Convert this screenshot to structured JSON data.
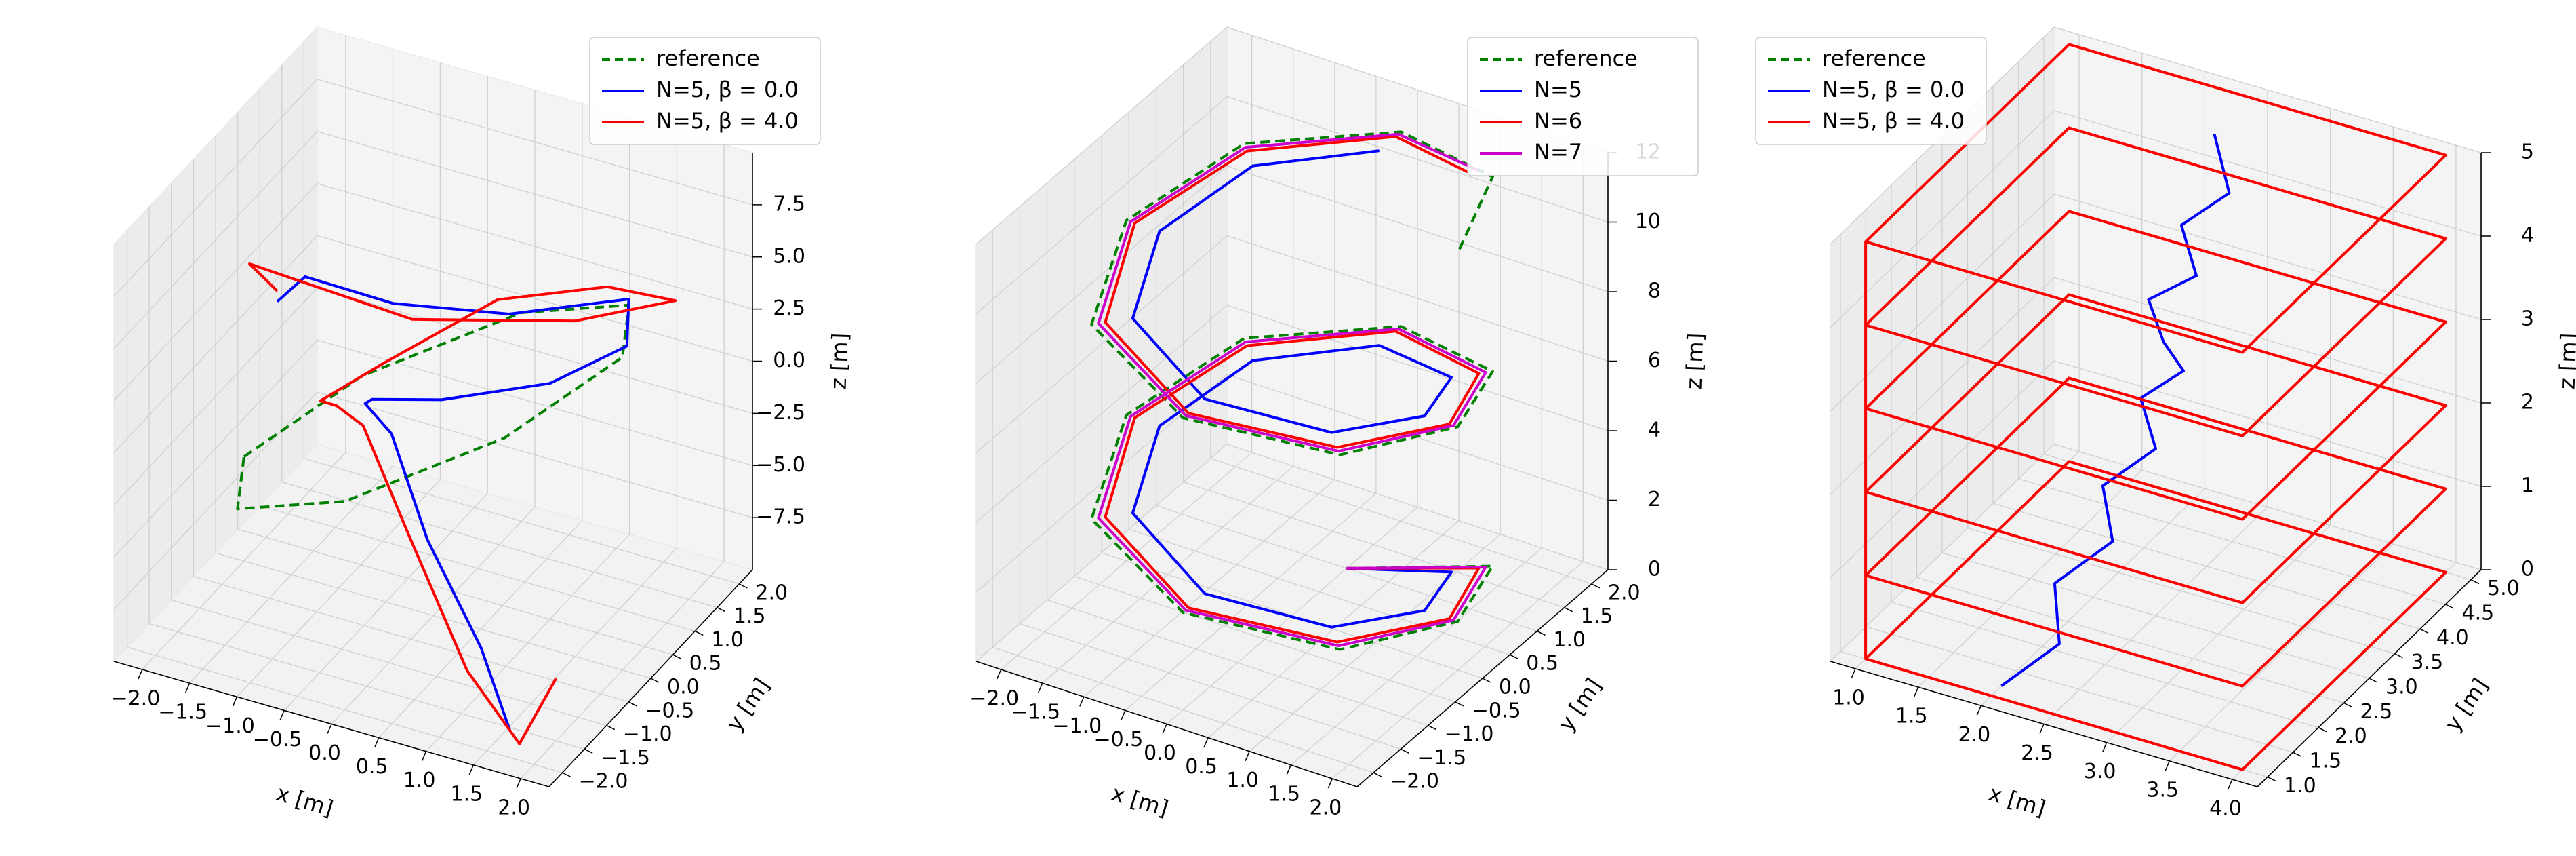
{
  "chart_data": [
    {
      "type": "line",
      "subtype": "3d",
      "xlabel": "x [m]",
      "ylabel": "y [m]",
      "zlabel": "z [m]",
      "xlim": [
        -2.3,
        2.3
      ],
      "ylim": [
        -2.3,
        2.3
      ],
      "zlim": [
        -10,
        10
      ],
      "xticks": [
        "−2.0",
        "−1.5",
        "−1.0",
        "−0.5",
        "0.0",
        "0.5",
        "1.0",
        "1.5",
        "2.0"
      ],
      "yticks": [
        "−2.0",
        "−1.5",
        "−1.0",
        "−0.5",
        "0.0",
        "0.5",
        "1.0",
        "1.5",
        "2.0"
      ],
      "zticks": [
        "−7.5",
        "−5.0",
        "−2.5",
        "0.0",
        "2.5",
        "5.0",
        "7.5"
      ],
      "legend_position": "upper-right",
      "grid": true,
      "series": [
        {
          "name": "reference",
          "color": "#008000",
          "style": "dashed",
          "x": [
            -2.0,
            -1.41,
            0.0,
            1.41,
            2.0,
            1.41,
            0.0,
            -1.41,
            -2.0
          ],
          "y": [
            0.0,
            1.41,
            2.0,
            1.41,
            0.0,
            -1.41,
            -2.0,
            -1.41,
            0.0
          ],
          "z": [
            -5.0,
            -3.54,
            0.0,
            3.54,
            5.0,
            3.54,
            0.0,
            -3.54,
            -5.0
          ]
        },
        {
          "name": "N=5, β = 0.0",
          "color": "#0000ff",
          "style": "solid",
          "x": [
            1.7,
            1.3,
            0.5,
            -0.3,
            -1.0,
            -1.3,
            -0.8,
            0.3,
            1.3,
            1.6,
            0.8,
            0.0,
            -0.7,
            -0.9
          ],
          "y": [
            -1.9,
            -1.7,
            -1.2,
            -0.3,
            0.6,
            1.4,
            1.9,
            2.0,
            1.6,
            1.0,
            0.0,
            -0.9,
            -1.4,
            -1.6
          ],
          "z": [
            -9.0,
            -6.0,
            -3.0,
            -1.0,
            -2.5,
            -4.5,
            -5.0,
            -3.0,
            1.0,
            5.0,
            5.5,
            7.0,
            8.5,
            7.5
          ]
        },
        {
          "name": "N=5, β = 4.0",
          "color": "#ff0000",
          "style": "solid",
          "x": [
            2.0,
            1.8,
            1.2,
            0.3,
            -0.6,
            -1.3,
            -1.8,
            -1.4,
            -0.3,
            1.0,
            2.0,
            1.4,
            0.2,
            -0.7,
            -1.1,
            -0.9
          ],
          "y": [
            -1.5,
            -1.9,
            -1.8,
            -1.2,
            -0.3,
            0.6,
            1.3,
            1.9,
            2.1,
            1.8,
            1.2,
            0.2,
            -0.9,
            -1.5,
            -1.8,
            -1.6
          ],
          "z": [
            -7.0,
            -9.5,
            -7.0,
            -3.0,
            -1.0,
            -3.0,
            -5.0,
            -4.0,
            0.0,
            3.0,
            5.0,
            5.5,
            6.5,
            8.5,
            9.5,
            8.0
          ]
        }
      ]
    },
    {
      "type": "line",
      "subtype": "3d",
      "xlabel": "x [m]",
      "ylabel": "y [m]",
      "zlabel": "z [m]",
      "xlim": [
        -2.3,
        2.3
      ],
      "ylim": [
        -2.3,
        2.3
      ],
      "zlim": [
        0,
        12
      ],
      "xticks": [
        "−2.0",
        "−1.5",
        "−1.0",
        "−0.5",
        "0.0",
        "0.5",
        "1.0",
        "1.5",
        "2.0"
      ],
      "yticks": [
        "−2.0",
        "−1.5",
        "−1.0",
        "−0.5",
        "0.0",
        "0.5",
        "1.0",
        "1.5",
        "2.0"
      ],
      "zticks": [
        "0",
        "2",
        "4",
        "6",
        "8",
        "10",
        "12"
      ],
      "legend_position": "upper-right",
      "grid": true,
      "series": [
        {
          "name": "reference",
          "color": "#008000",
          "style": "dashed",
          "x": [
            0.0,
            1.5,
            2.0,
            1.5,
            0.0,
            -1.5,
            -2.0,
            -1.5,
            0.0,
            1.5,
            2.0,
            1.5,
            0.0,
            -1.5,
            -2.0,
            -1.5,
            0.0,
            1.5,
            2.0
          ],
          "y": [
            1.0,
            1.4,
            0.0,
            -1.4,
            -2.0,
            -1.4,
            0.0,
            1.4,
            2.0,
            1.4,
            0.0,
            -1.4,
            -2.0,
            -1.4,
            0.0,
            1.4,
            2.0,
            1.4,
            0.0
          ],
          "z": [
            0.0,
            0.7,
            1.4,
            2.1,
            2.8,
            3.5,
            4.2,
            4.9,
            5.6,
            6.3,
            7.0,
            7.7,
            8.4,
            9.1,
            9.8,
            10.5,
            11.2,
            11.9,
            12.0
          ]
        },
        {
          "name": "N=5",
          "color": "#0000ff",
          "style": "solid",
          "x": [
            0.0,
            1.2,
            1.6,
            1.2,
            0.0,
            -1.2,
            -1.6,
            -1.2,
            0.0,
            1.2,
            1.6,
            1.2,
            0.0,
            -1.2,
            -1.6,
            -1.2,
            0.0
          ],
          "y": [
            1.0,
            1.1,
            0.0,
            -1.1,
            -1.6,
            -1.1,
            0.0,
            1.1,
            1.6,
            1.1,
            0.0,
            -1.1,
            -1.6,
            -1.1,
            0.0,
            1.1,
            1.6
          ],
          "z": [
            0.0,
            0.7,
            1.4,
            2.1,
            2.8,
            3.5,
            4.2,
            4.9,
            5.6,
            6.3,
            7.0,
            7.7,
            8.4,
            9.1,
            9.8,
            10.5,
            11.2
          ]
        },
        {
          "name": "N=6",
          "color": "#ff0000",
          "style": "solid",
          "x": [
            0.0,
            1.4,
            1.9,
            1.4,
            0.0,
            -1.4,
            -1.9,
            -1.4,
            0.0,
            1.4,
            1.9,
            1.4,
            0.0,
            -1.4,
            -1.9,
            -1.4,
            0.0,
            1.2
          ],
          "y": [
            1.0,
            1.3,
            0.0,
            -1.3,
            -1.9,
            -1.3,
            0.0,
            1.3,
            1.9,
            1.3,
            0.0,
            -1.3,
            -1.9,
            -1.3,
            0.0,
            1.3,
            1.9,
            1.4
          ],
          "z": [
            0.0,
            0.7,
            1.4,
            2.1,
            2.8,
            3.5,
            4.2,
            4.9,
            5.6,
            6.3,
            7.0,
            7.7,
            8.4,
            9.1,
            9.8,
            10.5,
            11.2,
            11.8
          ]
        },
        {
          "name": "N=7",
          "color": "#cc00cc",
          "style": "solid",
          "x": [
            0.0,
            1.45,
            1.95,
            1.45,
            0.0,
            -1.45,
            -1.95,
            -1.45,
            0.0,
            1.45,
            1.95,
            1.45,
            0.0,
            -1.45,
            -1.95,
            -1.45,
            0.0,
            1.3
          ],
          "y": [
            1.0,
            1.35,
            0.0,
            -1.35,
            -1.95,
            -1.35,
            0.0,
            1.35,
            1.95,
            1.35,
            0.0,
            -1.35,
            -1.95,
            -1.35,
            0.0,
            1.35,
            1.95,
            1.45
          ],
          "z": [
            0.0,
            0.7,
            1.4,
            2.1,
            2.8,
            3.5,
            4.2,
            4.9,
            5.6,
            6.3,
            7.0,
            7.7,
            8.4,
            9.1,
            9.8,
            10.5,
            11.2,
            11.85
          ]
        }
      ]
    },
    {
      "type": "line",
      "subtype": "3d",
      "xlabel": "x [m]",
      "ylabel": "y [m]",
      "zlabel": "z [m]",
      "xlim": [
        0.8,
        4.2
      ],
      "ylim": [
        0.8,
        5.2
      ],
      "zlim": [
        0,
        5
      ],
      "xticks": [
        "1.0",
        "1.5",
        "2.0",
        "2.5",
        "3.0",
        "3.5",
        "4.0"
      ],
      "yticks": [
        "1.0",
        "1.5",
        "2.0",
        "2.5",
        "3.0",
        "3.5",
        "4.0",
        "4.5",
        "5.0"
      ],
      "zticks": [
        "0",
        "1",
        "2",
        "3",
        "4",
        "5"
      ],
      "legend_position": "upper-left",
      "grid": true,
      "series": [
        {
          "name": "reference",
          "color": "#008000",
          "style": "dashed",
          "x": [],
          "y": [],
          "z": []
        },
        {
          "name": "N=5, β = 0.0",
          "color": "#0000ff",
          "style": "solid",
          "x": [
            2.0,
            2.3,
            2.1,
            2.4,
            2.2,
            2.5,
            2.3,
            2.6,
            2.4,
            2.2,
            2.5,
            2.3,
            2.6,
            2.4
          ],
          "y": [
            1.2,
            1.6,
            2.0,
            2.4,
            2.7,
            3.0,
            3.2,
            3.3,
            3.4,
            3.6,
            3.8,
            4.0,
            4.2,
            4.4
          ],
          "z": [
            0.0,
            0.4,
            0.8,
            1.2,
            1.6,
            2.0,
            2.4,
            2.8,
            3.0,
            3.3,
            3.6,
            4.0,
            4.4,
            4.9
          ]
        },
        {
          "name": "N=5, β = 4.0",
          "color": "#ff0000",
          "style": "solid",
          "x": [
            1.0,
            4.0,
            4.0,
            1.0,
            1.0,
            1.0,
            4.0,
            4.0,
            1.0,
            1.0,
            1.0,
            4.0,
            4.0,
            1.0,
            1.0,
            1.0,
            4.0,
            4.0,
            1.0,
            1.0,
            1.0,
            4.0,
            4.0,
            1.0,
            1.0,
            1.0,
            4.0,
            4.0,
            1.0,
            1.0
          ],
          "y": [
            1.0,
            1.0,
            5.0,
            5.0,
            1.0,
            1.0,
            1.0,
            5.0,
            5.0,
            1.0,
            1.0,
            1.0,
            5.0,
            5.0,
            1.0,
            1.0,
            1.0,
            5.0,
            5.0,
            1.0,
            1.0,
            1.0,
            5.0,
            5.0,
            1.0,
            1.0,
            1.0,
            5.0,
            5.0,
            1.0
          ],
          "z": [
            0.0,
            0.0,
            0.0,
            0.0,
            0.0,
            1.0,
            1.0,
            1.0,
            1.0,
            1.0,
            2.0,
            2.0,
            2.0,
            2.0,
            2.0,
            3.0,
            3.0,
            3.0,
            3.0,
            3.0,
            4.0,
            4.0,
            4.0,
            4.0,
            4.0,
            5.0,
            5.0,
            5.0,
            5.0,
            5.0
          ]
        }
      ]
    }
  ]
}
